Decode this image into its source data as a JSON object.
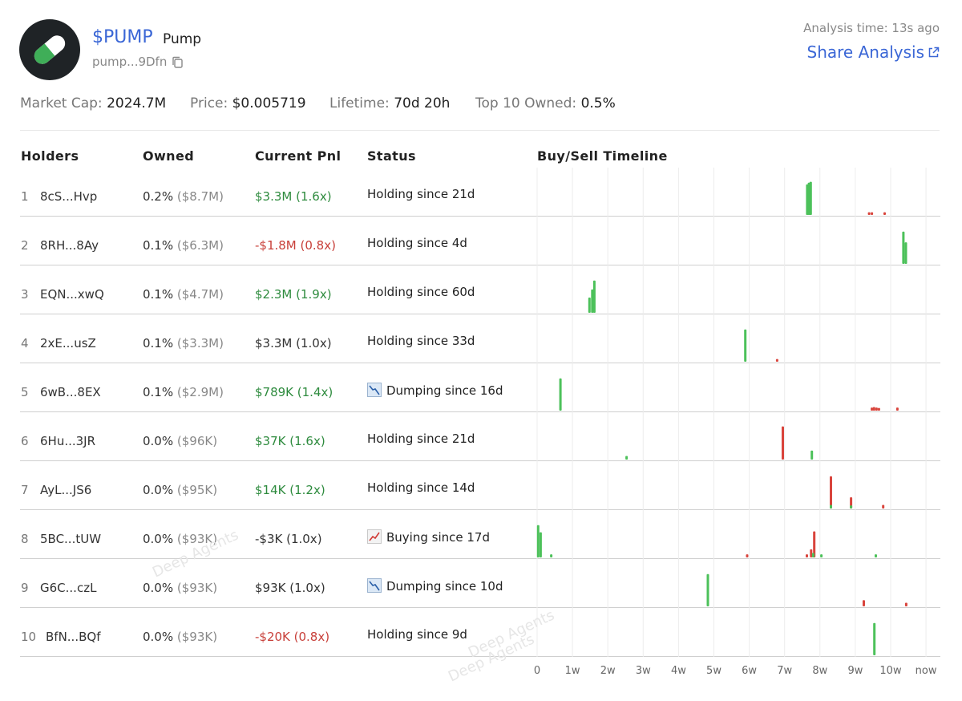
{
  "header": {
    "symbol": "$PUMP",
    "name": "Pump",
    "address": "pump...9Dfn",
    "analysis_time": "Analysis time: 13s ago",
    "share_label": "Share Analysis"
  },
  "stats": {
    "market_cap_label": "Market Cap:",
    "market_cap": "2024.7M",
    "price_label": "Price:",
    "price": "$0.005719",
    "lifetime_label": "Lifetime:",
    "lifetime": "70d 20h",
    "top10_label": "Top 10 Owned:",
    "top10": "0.5%"
  },
  "columns": {
    "holders": "Holders",
    "owned": "Owned",
    "pnl": "Current Pnl",
    "status": "Status",
    "timeline": "Buy/Sell Timeline"
  },
  "colors": {
    "buy": "#4cc15a",
    "sell": "#d9443c",
    "accent": "#3b67d6"
  },
  "timeline_axis": {
    "ticks": [
      "0",
      "1w",
      "2w",
      "3w",
      "4w",
      "5w",
      "6w",
      "7w",
      "8w",
      "9w",
      "10w",
      "now"
    ]
  },
  "watermark": [
    "Deep Agents",
    "Deep Agents",
    "Deep Agents"
  ],
  "holders": [
    {
      "rank": "1",
      "address": "8cS...Hvp",
      "owned_pct": "0.2%",
      "owned_usd": "($8.7M)",
      "pnl": "$3.3M (1.6x)",
      "pnl_tone": "green",
      "status_icon": "",
      "status": "Holding since 21d",
      "events": [
        {
          "t": 7.64,
          "type": "buy",
          "h": 0.68
        },
        {
          "t": 7.69,
          "type": "buy",
          "h": 0.72
        },
        {
          "t": 7.74,
          "type": "buy",
          "h": 0.74
        },
        {
          "t": 9.39,
          "type": "sell",
          "h": 0.06
        },
        {
          "t": 9.47,
          "type": "sell",
          "h": 0.06
        },
        {
          "t": 9.83,
          "type": "sell",
          "h": 0.06
        }
      ]
    },
    {
      "rank": "2",
      "address": "8RH...8Ay",
      "owned_pct": "0.1%",
      "owned_usd": "($6.3M)",
      "pnl": "-$1.8M (0.8x)",
      "pnl_tone": "red",
      "status_icon": "",
      "status": "Holding since 4d",
      "events": [
        {
          "t": 10.36,
          "type": "buy",
          "h": 0.72
        },
        {
          "t": 10.43,
          "type": "buy",
          "h": 0.48
        }
      ]
    },
    {
      "rank": "3",
      "address": "EQN...xwQ",
      "owned_pct": "0.1%",
      "owned_usd": "($4.7M)",
      "pnl": "$2.3M (1.9x)",
      "pnl_tone": "green",
      "status_icon": "",
      "status": "Holding since 60d",
      "events": [
        {
          "t": 1.48,
          "type": "buy",
          "h": 0.34
        },
        {
          "t": 1.56,
          "type": "buy",
          "h": 0.52
        },
        {
          "t": 1.62,
          "type": "buy",
          "h": 0.72
        }
      ]
    },
    {
      "rank": "4",
      "address": "2xE...usZ",
      "owned_pct": "0.1%",
      "owned_usd": "($3.3M)",
      "pnl": "$3.3M (1.0x)",
      "pnl_tone": "neutral",
      "status_icon": "",
      "status": "Holding since 33d",
      "events": [
        {
          "t": 5.89,
          "type": "buy",
          "h": 0.72
        },
        {
          "t": 6.79,
          "type": "sell",
          "h": 0.06
        }
      ]
    },
    {
      "rank": "5",
      "address": "6wB...8EX",
      "owned_pct": "0.1%",
      "owned_usd": "($2.9M)",
      "pnl": "$789K (1.4x)",
      "pnl_tone": "green",
      "status_icon": "dumping-icon",
      "status": "Dumping since 16d",
      "events": [
        {
          "t": 0.66,
          "type": "buy",
          "h": 0.72
        },
        {
          "t": 9.47,
          "type": "sell",
          "h": 0.07
        },
        {
          "t": 9.53,
          "type": "sell",
          "h": 0.08
        },
        {
          "t": 9.6,
          "type": "sell",
          "h": 0.07
        },
        {
          "t": 9.67,
          "type": "sell",
          "h": 0.06
        },
        {
          "t": 10.19,
          "type": "sell",
          "h": 0.07
        }
      ]
    },
    {
      "rank": "6",
      "address": "6Hu...3JR",
      "owned_pct": "0.0%",
      "owned_usd": "($96K)",
      "pnl": "$37K (1.6x)",
      "pnl_tone": "green",
      "status_icon": "",
      "status": "Holding since 21d",
      "events": [
        {
          "t": 2.53,
          "type": "buy",
          "h": 0.08
        },
        {
          "t": 6.95,
          "type": "sell",
          "h": 0.74
        },
        {
          "t": 7.77,
          "type": "buy",
          "h": 0.2
        }
      ]
    },
    {
      "rank": "7",
      "address": "AyL...JS6",
      "owned_pct": "0.0%",
      "owned_usd": "($95K)",
      "pnl": "$14K (1.2x)",
      "pnl_tone": "green",
      "status_icon": "",
      "status": "Holding since 14d",
      "events": [
        {
          "t": 8.31,
          "type": "sell",
          "h": 0.72
        },
        {
          "t": 8.31,
          "type": "buy",
          "h": 0.08
        },
        {
          "t": 8.88,
          "type": "sell",
          "h": 0.25
        },
        {
          "t": 8.88,
          "type": "buy",
          "h": 0.07
        },
        {
          "t": 9.79,
          "type": "sell",
          "h": 0.08
        }
      ]
    },
    {
      "rank": "8",
      "address": "5BC...tUW",
      "owned_pct": "0.0%",
      "owned_usd": "($93K)",
      "pnl": "-$3K (1.0x)",
      "pnl_tone": "neutral",
      "status_icon": "buying-icon",
      "status": "Buying since 17d",
      "events": [
        {
          "t": 0.03,
          "type": "buy",
          "h": 0.72
        },
        {
          "t": 0.1,
          "type": "buy",
          "h": 0.56
        },
        {
          "t": 0.4,
          "type": "buy",
          "h": 0.07
        },
        {
          "t": 5.94,
          "type": "sell",
          "h": 0.07
        },
        {
          "t": 7.63,
          "type": "sell",
          "h": 0.07
        },
        {
          "t": 7.75,
          "type": "sell",
          "h": 0.18
        },
        {
          "t": 7.84,
          "type": "sell",
          "h": 0.58
        },
        {
          "t": 7.81,
          "type": "buy",
          "h": 0.1
        },
        {
          "t": 8.04,
          "type": "buy",
          "h": 0.07
        },
        {
          "t": 9.58,
          "type": "buy",
          "h": 0.07
        }
      ]
    },
    {
      "rank": "9",
      "address": "G6C...czL",
      "owned_pct": "0.0%",
      "owned_usd": "($93K)",
      "pnl": "$93K (1.0x)",
      "pnl_tone": "neutral",
      "status_icon": "dumping-icon",
      "status": "Dumping since 10d",
      "events": [
        {
          "t": 4.83,
          "type": "buy",
          "h": 0.72
        },
        {
          "t": 9.24,
          "type": "sell",
          "h": 0.14
        },
        {
          "t": 10.44,
          "type": "sell",
          "h": 0.08
        }
      ]
    },
    {
      "rank": "10",
      "address": "BfN...BQf",
      "owned_pct": "0.0%",
      "owned_usd": "($93K)",
      "pnl": "-$20K (0.8x)",
      "pnl_tone": "red",
      "status_icon": "",
      "status": "Holding since 9d",
      "events": [
        {
          "t": 9.54,
          "type": "buy",
          "h": 0.72
        }
      ]
    }
  ]
}
